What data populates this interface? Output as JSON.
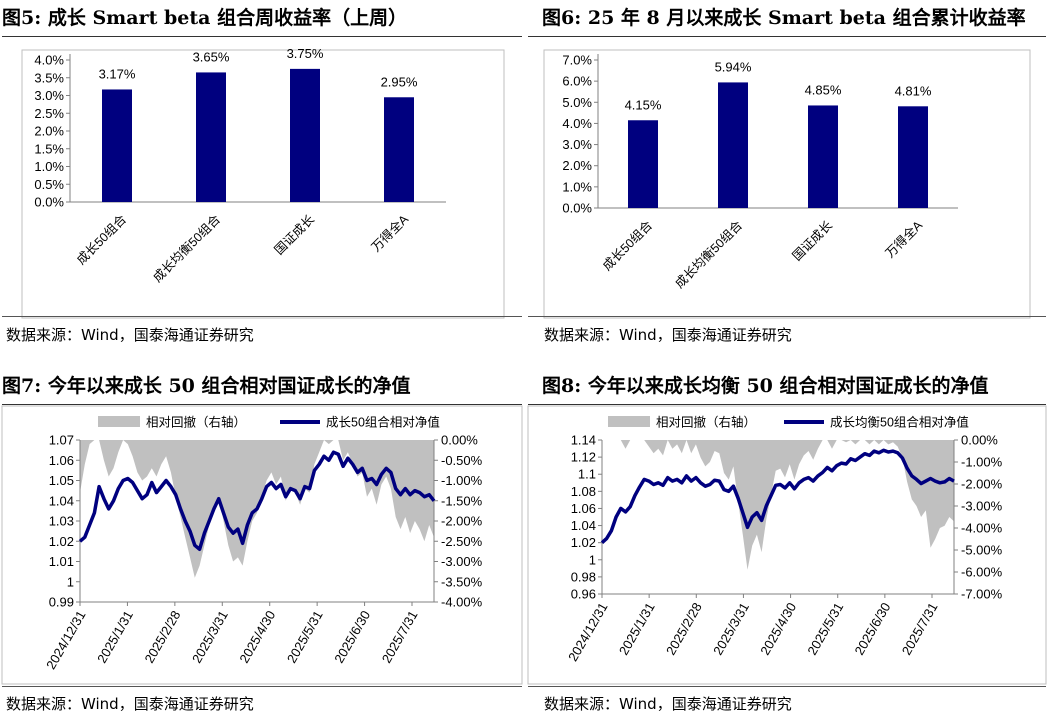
{
  "panels": [
    {
      "title": "图5:  成长 Smart beta 组合周收益率（上周）",
      "source": "数据来源：Wind，国泰海通证券研究",
      "chart_data": {
        "type": "bar",
        "categories": [
          "成长50组合",
          "成长均衡50组合",
          "国证成长",
          "万得全A"
        ],
        "values": [
          3.17,
          3.65,
          3.75,
          2.95
        ],
        "data_labels": [
          "3.17%",
          "3.65%",
          "3.75%",
          "2.95%"
        ],
        "ylim": [
          0,
          4.0
        ],
        "yticks": [
          "0.0%",
          "0.5%",
          "1.0%",
          "1.5%",
          "2.0%",
          "2.5%",
          "3.0%",
          "3.5%",
          "4.0%"
        ],
        "bar_color": "#00007f"
      }
    },
    {
      "title": "图6:  25 年 8 月以来成长 Smart beta 组合累计收益率",
      "source": "数据来源：Wind，国泰海通证券研究",
      "chart_data": {
        "type": "bar",
        "categories": [
          "成长50组合",
          "成长均衡50组合",
          "国证成长",
          "万得全A"
        ],
        "values": [
          4.15,
          5.94,
          4.85,
          4.81
        ],
        "data_labels": [
          "4.15%",
          "5.94%",
          "4.85%",
          "4.81%"
        ],
        "ylim": [
          0,
          7.0
        ],
        "yticks": [
          "0.0%",
          "1.0%",
          "2.0%",
          "3.0%",
          "4.0%",
          "5.0%",
          "6.0%",
          "7.0%"
        ],
        "bar_color": "#00007f"
      }
    },
    {
      "title": "图7:  今年以来成长 50 组合相对国证成长的净值",
      "source": "数据来源：Wind，国泰海通证券研究",
      "chart_data": {
        "type": "line",
        "legend": [
          "相对回撤（右轴）",
          "成长50组合相对净值"
        ],
        "xticks": [
          "2024/12/31",
          "2025/1/31",
          "2025/2/28",
          "2025/3/31",
          "2025/4/30",
          "2025/5/31",
          "2025/6/30",
          "2025/7/31"
        ],
        "ylim_left": [
          0.99,
          1.07
        ],
        "yticks_left": [
          "0.99",
          "1",
          "1.01",
          "1.02",
          "1.03",
          "1.04",
          "1.05",
          "1.06",
          "1.07"
        ],
        "ylim_right": [
          -4.0,
          0.0
        ],
        "yticks_right": [
          "-4.00%",
          "-3.50%",
          "-3.00%",
          "-2.50%",
          "-2.00%",
          "-1.50%",
          "-1.00%",
          "-0.50%",
          "0.00%"
        ],
        "series": [
          {
            "name": "成长50组合相对净值",
            "color": "#00007f",
            "values": [
              1.02,
              1.022,
              1.028,
              1.034,
              1.047,
              1.041,
              1.036,
              1.04,
              1.046,
              1.05,
              1.051,
              1.049,
              1.045,
              1.041,
              1.043,
              1.049,
              1.044,
              1.047,
              1.05,
              1.047,
              1.043,
              1.036,
              1.03,
              1.025,
              1.018,
              1.016,
              1.024,
              1.03,
              1.036,
              1.041,
              1.034,
              1.027,
              1.024,
              1.026,
              1.019,
              1.028,
              1.034,
              1.036,
              1.041,
              1.047,
              1.049,
              1.046,
              1.048,
              1.042,
              1.046,
              1.045,
              1.041,
              1.047,
              1.046,
              1.055,
              1.058,
              1.062,
              1.06,
              1.064,
              1.063,
              1.057,
              1.061,
              1.058,
              1.054,
              1.056,
              1.05,
              1.051,
              1.048,
              1.053,
              1.056,
              1.054,
              1.046,
              1.043,
              1.046,
              1.043,
              1.045,
              1.044,
              1.042,
              1.043,
              1.04
            ]
          },
          {
            "name": "相对回撤（右轴）",
            "color": "#c0c0c0",
            "values": [
              -1.3,
              -0.6,
              -0.1,
              0.0,
              0.0,
              -0.5,
              -0.9,
              -0.7,
              -0.3,
              0.0,
              -0.1,
              -0.4,
              -0.8,
              -1.0,
              -0.9,
              -0.7,
              -0.9,
              -0.6,
              -0.4,
              -0.8,
              -1.4,
              -1.9,
              -2.4,
              -2.9,
              -3.4,
              -3.1,
              -2.6,
              -2.1,
              -1.6,
              -1.4,
              -2.0,
              -2.6,
              -3.0,
              -2.9,
              -3.1,
              -2.5,
              -2.0,
              -1.8,
              -1.4,
              -1.0,
              -0.8,
              -1.1,
              -0.9,
              -1.5,
              -1.2,
              -1.3,
              -1.6,
              -1.2,
              -1.3,
              -0.6,
              -0.3,
              0.0,
              -0.1,
              0.0,
              0.0,
              -0.5,
              -0.3,
              -0.6,
              -0.9,
              -0.8,
              -1.4,
              -1.2,
              -1.6,
              -1.1,
              -0.9,
              -1.2,
              -1.9,
              -2.2,
              -1.9,
              -2.3,
              -2.0,
              -2.2,
              -2.5,
              -2.1,
              -2.4
            ]
          }
        ]
      }
    },
    {
      "title": "图8:  今年以来成长均衡 50 组合相对国证成长的净值",
      "source": "数据来源：Wind，国泰海通证券研究",
      "chart_data": {
        "type": "line",
        "legend": [
          "相对回撤（右轴）",
          "成长均衡50组合相对净值"
        ],
        "xticks": [
          "2024/12/31",
          "2025/1/31",
          "2025/2/28",
          "2025/3/31",
          "2025/4/30",
          "2025/5/31",
          "2025/6/30",
          "2025/7/31"
        ],
        "ylim_left": [
          0.96,
          1.14
        ],
        "yticks_left": [
          "0.96",
          "0.98",
          "1",
          "1.02",
          "1.04",
          "1.06",
          "1.08",
          "1.1",
          "1.12",
          "1.14"
        ],
        "ylim_right": [
          -7.0,
          0.0
        ],
        "yticks_right": [
          "-7.00%",
          "-6.00%",
          "-5.00%",
          "-4.00%",
          "-3.00%",
          "-2.00%",
          "-1.00%",
          "0.00%"
        ],
        "series": [
          {
            "name": "成长均衡50组合相对净值",
            "color": "#00007f",
            "values": [
              1.02,
              1.025,
              1.034,
              1.05,
              1.06,
              1.056,
              1.062,
              1.075,
              1.085,
              1.094,
              1.092,
              1.088,
              1.09,
              1.087,
              1.096,
              1.092,
              1.094,
              1.09,
              1.098,
              1.092,
              1.096,
              1.09,
              1.086,
              1.088,
              1.093,
              1.092,
              1.082,
              1.08,
              1.086,
              1.072,
              1.055,
              1.038,
              1.05,
              1.055,
              1.046,
              1.063,
              1.075,
              1.087,
              1.088,
              1.084,
              1.09,
              1.083,
              1.09,
              1.094,
              1.096,
              1.092,
              1.098,
              1.102,
              1.108,
              1.104,
              1.11,
              1.113,
              1.112,
              1.118,
              1.116,
              1.12,
              1.124,
              1.122,
              1.127,
              1.125,
              1.128,
              1.126,
              1.127,
              1.125,
              1.119,
              1.107,
              1.098,
              1.094,
              1.089,
              1.092,
              1.095,
              1.092,
              1.09,
              1.091,
              1.095,
              1.092
            ]
          },
          {
            "name": "相对回撤（右轴）",
            "color": "#c0c0c0",
            "values": [
              0.0,
              0.0,
              0.0,
              0.0,
              0.0,
              -0.4,
              0.0,
              0.0,
              0.0,
              0.0,
              -0.3,
              -0.6,
              -0.4,
              -0.7,
              0.0,
              -0.4,
              -0.2,
              -0.6,
              0.0,
              -0.6,
              -0.2,
              -0.8,
              -1.2,
              -1.0,
              -0.5,
              -0.6,
              -1.5,
              -1.8,
              -1.2,
              -2.8,
              -4.3,
              -5.9,
              -4.8,
              -4.3,
              -5.1,
              -3.6,
              -2.5,
              -1.4,
              -1.3,
              -1.7,
              -1.1,
              -1.8,
              -1.1,
              -0.7,
              -0.5,
              -0.9,
              -0.4,
              0.0,
              0.0,
              -0.4,
              0.0,
              0.0,
              -0.1,
              0.0,
              -0.2,
              0.0,
              0.0,
              -0.2,
              0.0,
              -0.2,
              0.0,
              -0.2,
              -0.1,
              -0.3,
              -0.8,
              -1.9,
              -2.7,
              -3.0,
              -3.5,
              -3.2,
              -4.9,
              -4.5,
              -4.0,
              -3.9,
              -3.5,
              -3.7
            ]
          }
        ]
      }
    }
  ]
}
